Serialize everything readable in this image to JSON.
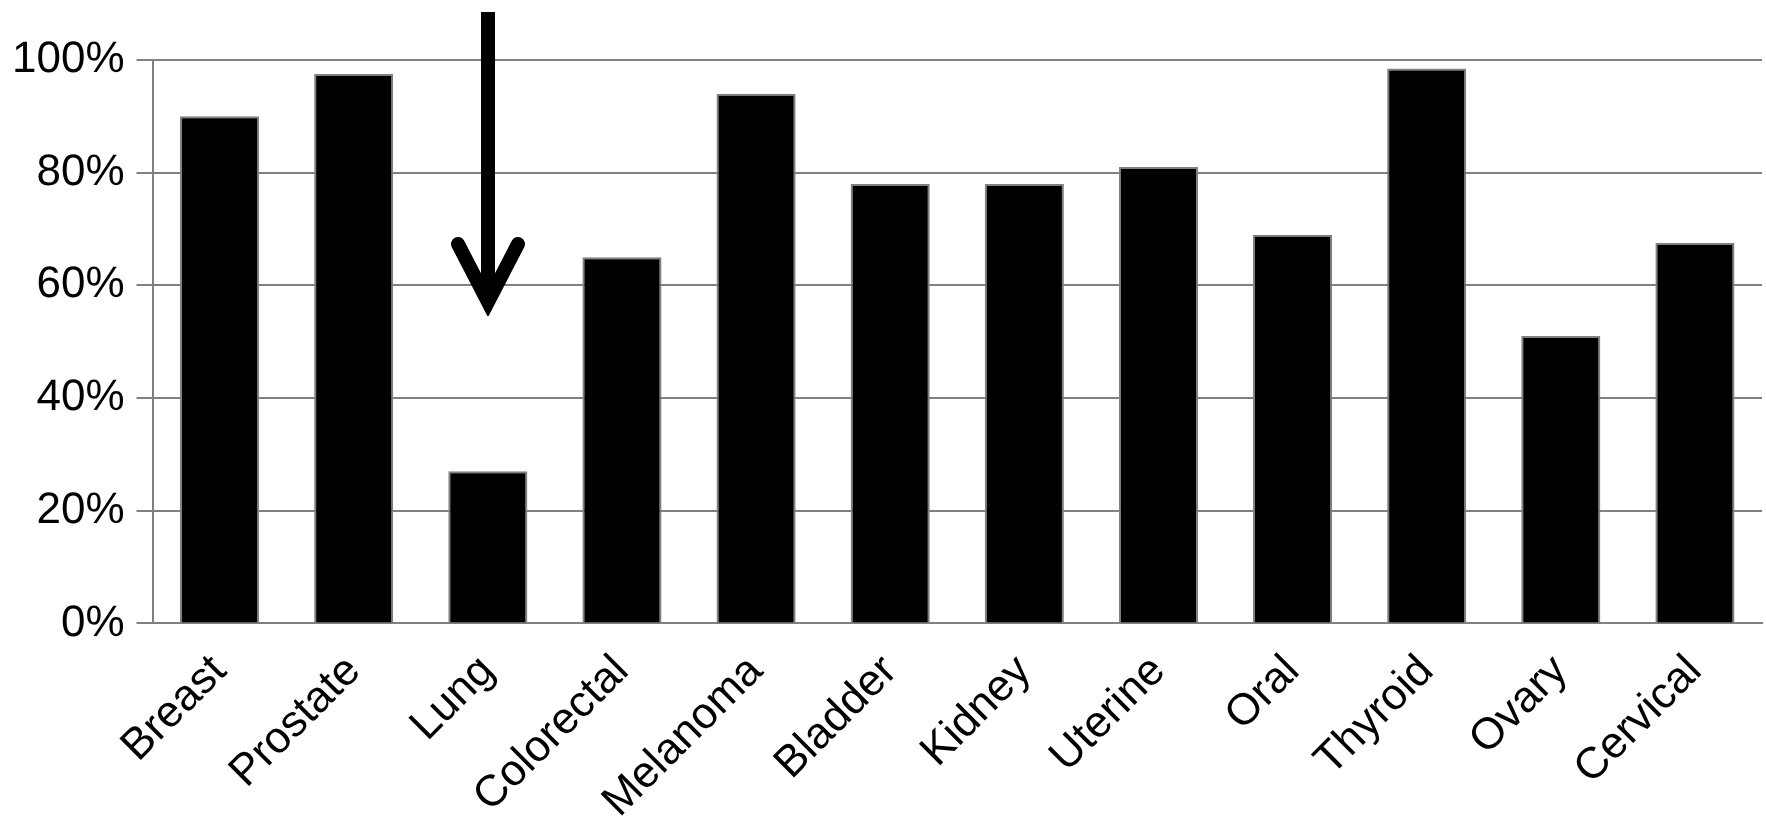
{
  "chart_data": {
    "type": "bar",
    "categories": [
      "Breast",
      "Prostate",
      "Lung",
      "Colorectal",
      "Melanoma",
      "Bladder",
      "Kidney",
      "Uterine",
      "Oral",
      "Thyroid",
      "Ovary",
      "Cervical"
    ],
    "values": [
      90,
      97.5,
      27,
      65,
      94,
      78,
      78,
      81,
      69,
      98.5,
      51,
      67.5
    ],
    "color": "#000000",
    "ylim": [
      0,
      100
    ],
    "yticks": [
      {
        "value": 0,
        "label": "0%"
      },
      {
        "value": 20,
        "label": "20%"
      },
      {
        "value": 40,
        "label": "40%"
      },
      {
        "value": 60,
        "label": "60%"
      },
      {
        "value": 80,
        "label": "80%"
      },
      {
        "value": 100,
        "label": "100%"
      }
    ],
    "grid": "y",
    "legend": false
  }
}
